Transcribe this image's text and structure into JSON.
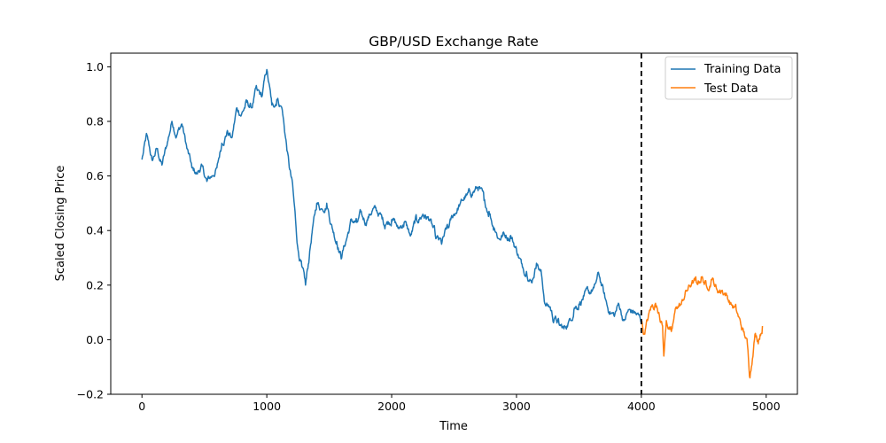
{
  "chart_data": {
    "type": "line",
    "title": "GBP/USD Exchange Rate",
    "xlabel": "Time",
    "ylabel": "Scaled Closing Price",
    "xlim": [
      -250,
      5250
    ],
    "ylim": [
      -0.2,
      1.05
    ],
    "xticks": [
      0,
      1000,
      2000,
      3000,
      4000,
      5000
    ],
    "yticks": [
      -0.2,
      0.0,
      0.2,
      0.4,
      0.6,
      0.8,
      1.0
    ],
    "ytick_labels": [
      "−0.2",
      "0.0",
      "0.2",
      "0.4",
      "0.6",
      "0.8",
      "1.0"
    ],
    "split_line": {
      "x": 4000,
      "style": "dashed",
      "color": "#000000"
    },
    "legend": {
      "position": "top-right"
    },
    "grid": false,
    "series": [
      {
        "name": "Training Data",
        "color": "#1f77b4",
        "points": [
          [
            0,
            0.66
          ],
          [
            40,
            0.75
          ],
          [
            80,
            0.66
          ],
          [
            120,
            0.7
          ],
          [
            160,
            0.64
          ],
          [
            200,
            0.71
          ],
          [
            240,
            0.8
          ],
          [
            280,
            0.75
          ],
          [
            320,
            0.79
          ],
          [
            360,
            0.7
          ],
          [
            400,
            0.63
          ],
          [
            440,
            0.61
          ],
          [
            480,
            0.64
          ],
          [
            520,
            0.58
          ],
          [
            560,
            0.6
          ],
          [
            600,
            0.63
          ],
          [
            640,
            0.72
          ],
          [
            680,
            0.76
          ],
          [
            720,
            0.74
          ],
          [
            760,
            0.85
          ],
          [
            800,
            0.83
          ],
          [
            840,
            0.87
          ],
          [
            880,
            0.85
          ],
          [
            920,
            0.92
          ],
          [
            960,
            0.89
          ],
          [
            1000,
            0.99
          ],
          [
            1040,
            0.86
          ],
          [
            1080,
            0.88
          ],
          [
            1120,
            0.85
          ],
          [
            1150,
            0.74
          ],
          [
            1180,
            0.63
          ],
          [
            1210,
            0.55
          ],
          [
            1230,
            0.44
          ],
          [
            1250,
            0.33
          ],
          [
            1280,
            0.27
          ],
          [
            1310,
            0.2
          ],
          [
            1340,
            0.3
          ],
          [
            1370,
            0.42
          ],
          [
            1400,
            0.5
          ],
          [
            1440,
            0.48
          ],
          [
            1480,
            0.5
          ],
          [
            1520,
            0.42
          ],
          [
            1560,
            0.36
          ],
          [
            1600,
            0.3
          ],
          [
            1640,
            0.37
          ],
          [
            1680,
            0.44
          ],
          [
            1720,
            0.43
          ],
          [
            1760,
            0.46
          ],
          [
            1800,
            0.43
          ],
          [
            1850,
            0.48
          ],
          [
            1900,
            0.46
          ],
          [
            1950,
            0.42
          ],
          [
            2000,
            0.44
          ],
          [
            2050,
            0.41
          ],
          [
            2100,
            0.43
          ],
          [
            2150,
            0.38
          ],
          [
            2200,
            0.44
          ],
          [
            2250,
            0.46
          ],
          [
            2300,
            0.44
          ],
          [
            2350,
            0.38
          ],
          [
            2400,
            0.35
          ],
          [
            2450,
            0.41
          ],
          [
            2500,
            0.46
          ],
          [
            2550,
            0.5
          ],
          [
            2600,
            0.53
          ],
          [
            2650,
            0.54
          ],
          [
            2700,
            0.56
          ],
          [
            2740,
            0.51
          ],
          [
            2780,
            0.47
          ],
          [
            2820,
            0.41
          ],
          [
            2860,
            0.37
          ],
          [
            2900,
            0.39
          ],
          [
            2950,
            0.38
          ],
          [
            3000,
            0.33
          ],
          [
            3040,
            0.28
          ],
          [
            3080,
            0.25
          ],
          [
            3120,
            0.21
          ],
          [
            3160,
            0.28
          ],
          [
            3200,
            0.24
          ],
          [
            3230,
            0.13
          ],
          [
            3270,
            0.12
          ],
          [
            3300,
            0.07
          ],
          [
            3340,
            0.06
          ],
          [
            3380,
            0.04
          ],
          [
            3420,
            0.07
          ],
          [
            3460,
            0.11
          ],
          [
            3500,
            0.13
          ],
          [
            3540,
            0.16
          ],
          [
            3580,
            0.17
          ],
          [
            3620,
            0.19
          ],
          [
            3660,
            0.24
          ],
          [
            3700,
            0.17
          ],
          [
            3740,
            0.1
          ],
          [
            3780,
            0.09
          ],
          [
            3820,
            0.13
          ],
          [
            3860,
            0.07
          ],
          [
            3900,
            0.11
          ],
          [
            3950,
            0.1
          ],
          [
            4000,
            0.07
          ]
        ]
      },
      {
        "name": "Test Data",
        "color": "#ff7f0e",
        "points": [
          [
            4000,
            0.07
          ],
          [
            4020,
            0.02
          ],
          [
            4050,
            0.07
          ],
          [
            4080,
            0.12
          ],
          [
            4110,
            0.13
          ],
          [
            4140,
            0.1
          ],
          [
            4170,
            0.05
          ],
          [
            4180,
            -0.06
          ],
          [
            4200,
            0.07
          ],
          [
            4240,
            0.03
          ],
          [
            4280,
            0.12
          ],
          [
            4320,
            0.13
          ],
          [
            4360,
            0.18
          ],
          [
            4400,
            0.2
          ],
          [
            4440,
            0.21
          ],
          [
            4480,
            0.23
          ],
          [
            4520,
            0.2
          ],
          [
            4560,
            0.22
          ],
          [
            4600,
            0.19
          ],
          [
            4640,
            0.18
          ],
          [
            4680,
            0.17
          ],
          [
            4720,
            0.13
          ],
          [
            4760,
            0.11
          ],
          [
            4800,
            0.05
          ],
          [
            4830,
            0.01
          ],
          [
            4850,
            -0.02
          ],
          [
            4870,
            -0.14
          ],
          [
            4890,
            -0.07
          ],
          [
            4910,
            0.02
          ],
          [
            4940,
            0.0
          ],
          [
            4970,
            0.05
          ]
        ]
      }
    ]
  }
}
